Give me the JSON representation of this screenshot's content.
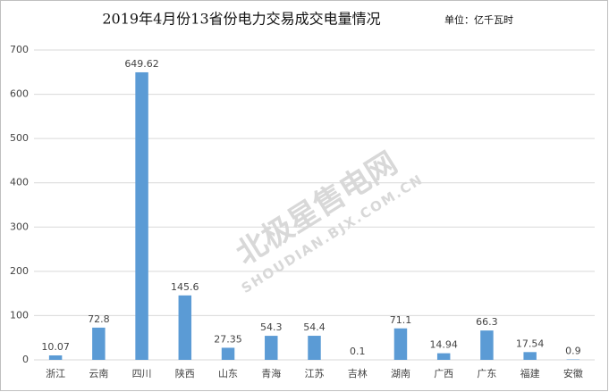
{
  "chart_data": {
    "type": "bar",
    "title": "2019年4月份13省份电力交易成交电量情况",
    "unit_label": "单位：亿千瓦时",
    "watermark": [
      "北极星售电网",
      "SHOUDIAN.BJX.COM.CN"
    ],
    "categories": [
      "浙江",
      "云南",
      "四川",
      "陕西",
      "山东",
      "青海",
      "江苏",
      "吉林",
      "湖南",
      "广西",
      "广东",
      "福建",
      "安徽"
    ],
    "values": [
      10.07,
      72.8,
      649.62,
      145.6,
      27.35,
      54.3,
      54.4,
      0.1,
      71.1,
      14.94,
      66.3,
      17.54,
      0.9
    ],
    "color": "#5b9bd5",
    "ylim": [
      0,
      700
    ],
    "yticks": [
      0,
      100,
      200,
      300,
      400,
      500,
      600,
      700
    ],
    "grid": true
  }
}
